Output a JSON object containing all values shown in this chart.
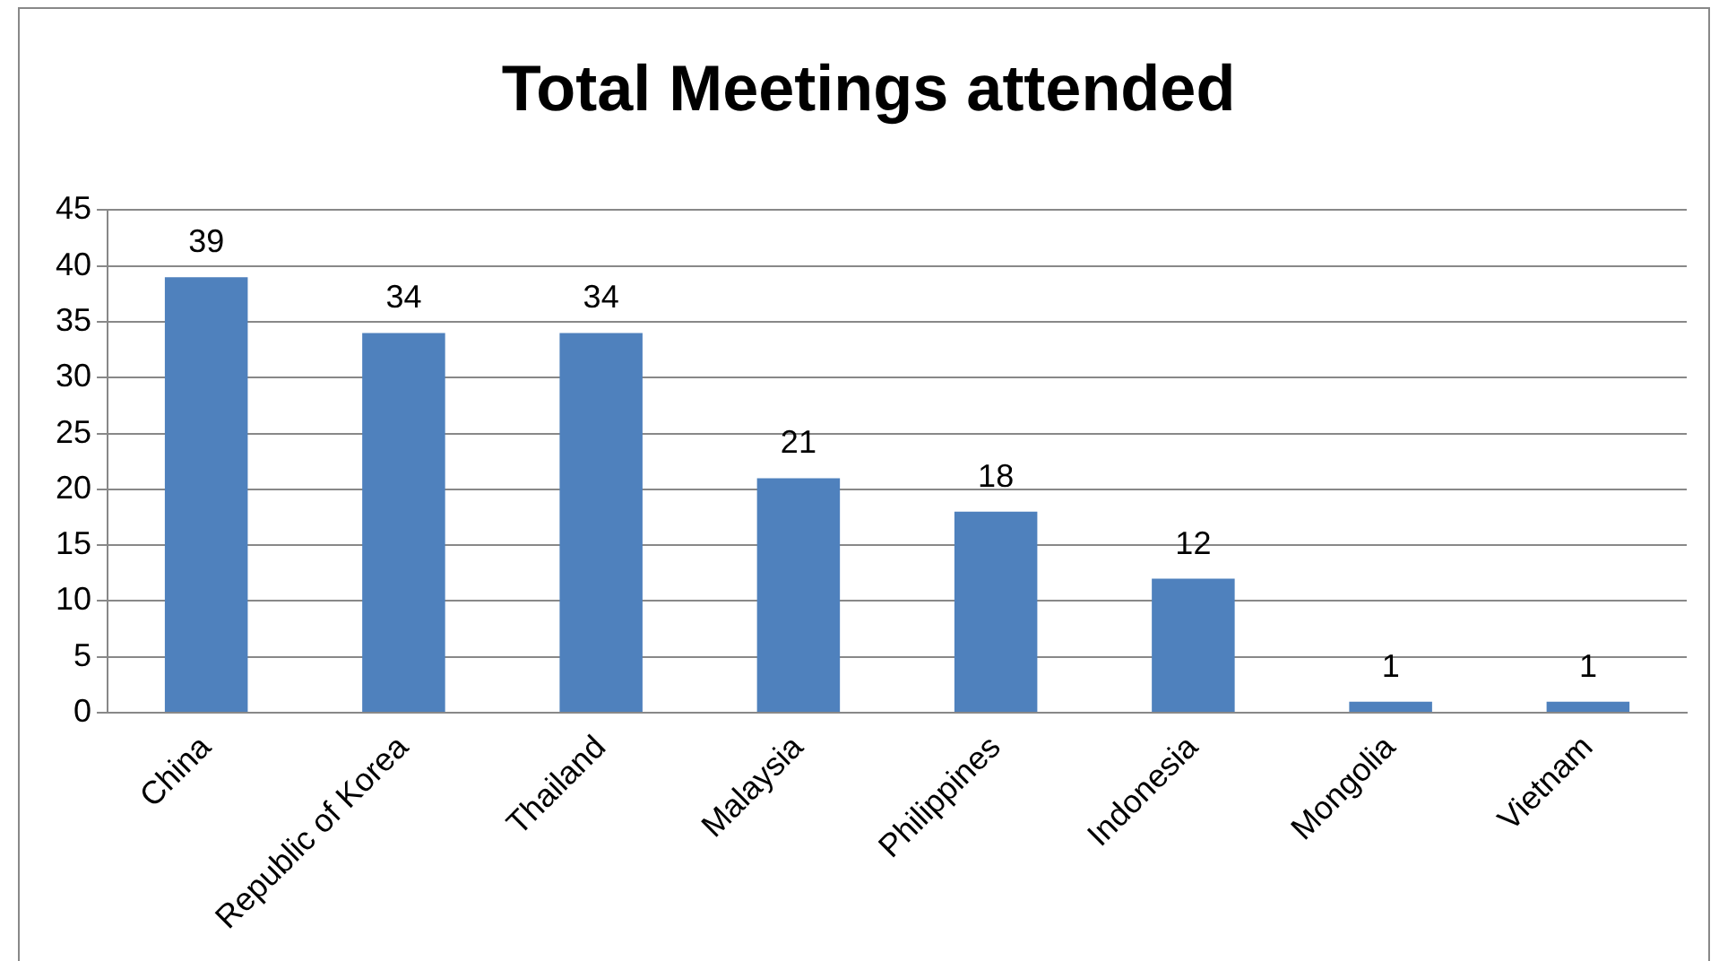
{
  "chart_data": {
    "type": "bar",
    "title": "Total Meetings attended",
    "categories": [
      "China",
      "Republic of Korea",
      "Thailand",
      "Malaysia",
      "Philippines",
      "Indonesia",
      "Mongolia",
      "Vietnam"
    ],
    "values": [
      39,
      34,
      34,
      21,
      18,
      12,
      1,
      1
    ],
    "color": "#4f81bd",
    "ylim": [
      0,
      45
    ],
    "yticks": [
      0,
      5,
      10,
      15,
      20,
      25,
      30,
      35,
      40,
      45
    ],
    "grid": "y",
    "data_labels": true,
    "legend": false
  }
}
